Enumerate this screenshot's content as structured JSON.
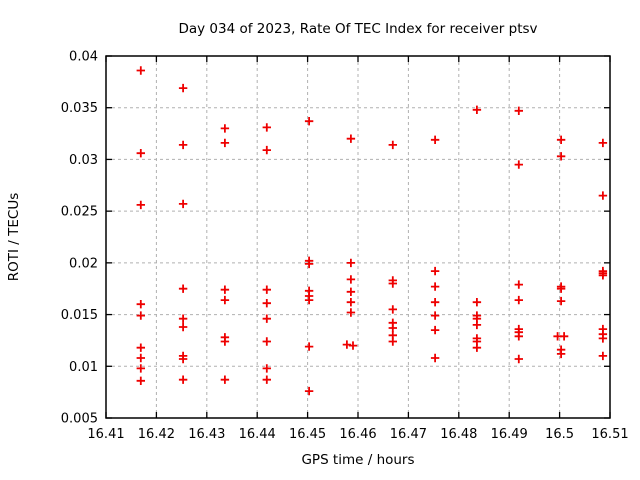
{
  "page": {
    "background_color": "#ffffff"
  },
  "chart_data": {
    "type": "scatter",
    "title": "Day 034 of 2023, Rate Of TEC Index for receiver ptsv",
    "xlabel": "GPS time / hours",
    "ylabel": "ROTI / TECUs",
    "xlim": [
      16.41,
      16.51
    ],
    "ylim": [
      0.005,
      0.04
    ],
    "xticks": {
      "values": [
        16.41,
        16.42,
        16.43,
        16.44,
        16.45,
        16.46,
        16.47,
        16.48,
        16.49,
        16.5,
        16.51
      ],
      "labels": [
        "16.41",
        "16.42",
        "16.43",
        "16.44",
        "16.45",
        "16.46",
        "16.47",
        "16.48",
        "16.49",
        "16.5",
        "16.51"
      ]
    },
    "yticks": {
      "values": [
        0.005,
        0.01,
        0.015,
        0.02,
        0.025,
        0.03,
        0.035,
        0.04
      ],
      "labels": [
        "0.005",
        "0.01",
        "0.015",
        "0.02",
        "0.025",
        "0.03",
        "0.035",
        "0.04"
      ]
    },
    "grid": true,
    "grid_style": "dashed",
    "legend": "none",
    "marker": "plus",
    "colors": {
      "marker": "#ee0000",
      "grid": "#b0b0b0",
      "border": "#000000",
      "text": "#000000",
      "background": "#ffffff"
    },
    "series": [
      {
        "name": "ROTI",
        "points": [
          [
            16.4169,
            0.0386
          ],
          [
            16.4169,
            0.0306
          ],
          [
            16.4169,
            0.0256
          ],
          [
            16.4169,
            0.016
          ],
          [
            16.4169,
            0.0149
          ],
          [
            16.4169,
            0.0118
          ],
          [
            16.4169,
            0.0108
          ],
          [
            16.4169,
            0.0098
          ],
          [
            16.4169,
            0.0086
          ],
          [
            16.4253,
            0.0369
          ],
          [
            16.4253,
            0.0314
          ],
          [
            16.4253,
            0.0257
          ],
          [
            16.4253,
            0.0175
          ],
          [
            16.4253,
            0.0146
          ],
          [
            16.4253,
            0.0138
          ],
          [
            16.4253,
            0.011
          ],
          [
            16.4253,
            0.0107
          ],
          [
            16.4253,
            0.0087
          ],
          [
            16.4336,
            0.033
          ],
          [
            16.4336,
            0.0316
          ],
          [
            16.4336,
            0.0174
          ],
          [
            16.4336,
            0.0164
          ],
          [
            16.4336,
            0.0128
          ],
          [
            16.4336,
            0.0124
          ],
          [
            16.4336,
            0.0087
          ],
          [
            16.4419,
            0.0331
          ],
          [
            16.4419,
            0.0309
          ],
          [
            16.4419,
            0.0174
          ],
          [
            16.4419,
            0.0161
          ],
          [
            16.4419,
            0.0146
          ],
          [
            16.4419,
            0.0124
          ],
          [
            16.4419,
            0.0098
          ],
          [
            16.4419,
            0.0087
          ],
          [
            16.4503,
            0.0337
          ],
          [
            16.4503,
            0.0202
          ],
          [
            16.4503,
            0.0199
          ],
          [
            16.4503,
            0.0173
          ],
          [
            16.4503,
            0.0168
          ],
          [
            16.4503,
            0.0164
          ],
          [
            16.4503,
            0.0119
          ],
          [
            16.4503,
            0.0076
          ],
          [
            16.4586,
            0.032
          ],
          [
            16.4586,
            0.02
          ],
          [
            16.4586,
            0.0184
          ],
          [
            16.4586,
            0.0172
          ],
          [
            16.4586,
            0.0162
          ],
          [
            16.4586,
            0.0152
          ],
          [
            16.4578,
            0.0121
          ],
          [
            16.459,
            0.012
          ],
          [
            16.4669,
            0.0314
          ],
          [
            16.4669,
            0.0183
          ],
          [
            16.4669,
            0.018
          ],
          [
            16.4669,
            0.0155
          ],
          [
            16.4669,
            0.0142
          ],
          [
            16.4669,
            0.0137
          ],
          [
            16.4669,
            0.013
          ],
          [
            16.4669,
            0.0124
          ],
          [
            16.4753,
            0.0319
          ],
          [
            16.4753,
            0.0192
          ],
          [
            16.4753,
            0.0177
          ],
          [
            16.4753,
            0.0162
          ],
          [
            16.4753,
            0.0149
          ],
          [
            16.4753,
            0.0135
          ],
          [
            16.4753,
            0.0108
          ],
          [
            16.4836,
            0.0348
          ],
          [
            16.4836,
            0.0162
          ],
          [
            16.4836,
            0.0149
          ],
          [
            16.4836,
            0.0146
          ],
          [
            16.4836,
            0.014
          ],
          [
            16.4836,
            0.0127
          ],
          [
            16.4836,
            0.0124
          ],
          [
            16.4836,
            0.0118
          ],
          [
            16.4919,
            0.0347
          ],
          [
            16.4919,
            0.0295
          ],
          [
            16.4919,
            0.0179
          ],
          [
            16.4919,
            0.0164
          ],
          [
            16.4919,
            0.0136
          ],
          [
            16.4919,
            0.0133
          ],
          [
            16.4919,
            0.0129
          ],
          [
            16.4919,
            0.0107
          ],
          [
            16.5003,
            0.0319
          ],
          [
            16.5003,
            0.0303
          ],
          [
            16.5003,
            0.0177
          ],
          [
            16.5003,
            0.0175
          ],
          [
            16.5003,
            0.0163
          ],
          [
            16.4996,
            0.0129
          ],
          [
            16.5009,
            0.0129
          ],
          [
            16.5003,
            0.0116
          ],
          [
            16.5003,
            0.0112
          ],
          [
            16.5086,
            0.0316
          ],
          [
            16.5086,
            0.0265
          ],
          [
            16.5086,
            0.0192
          ],
          [
            16.5086,
            0.019
          ],
          [
            16.5086,
            0.0188
          ],
          [
            16.5086,
            0.0136
          ],
          [
            16.5086,
            0.0131
          ],
          [
            16.5086,
            0.0127
          ],
          [
            16.5086,
            0.011
          ]
        ]
      }
    ]
  }
}
